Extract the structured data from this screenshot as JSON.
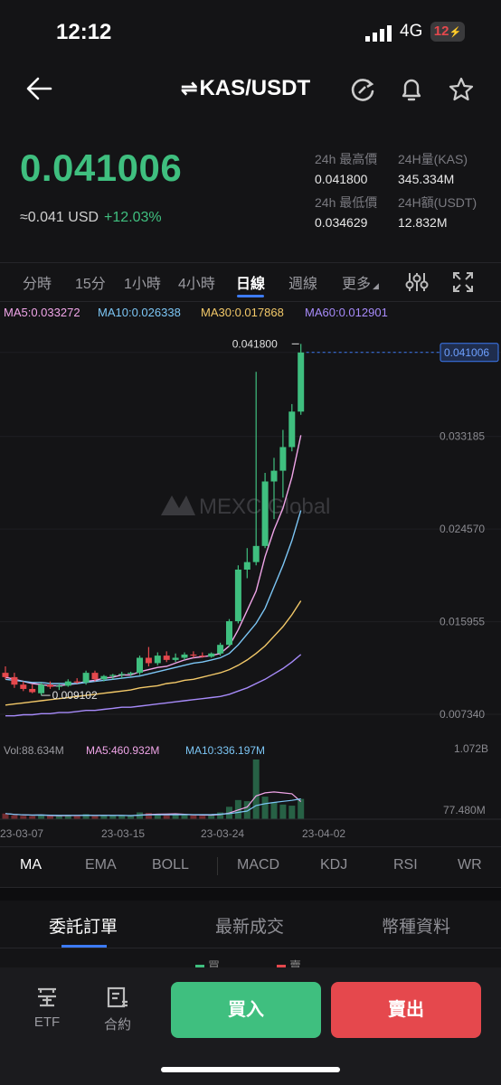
{
  "status": {
    "time": "12:12",
    "network": "4G",
    "battery": "12"
  },
  "header": {
    "pair": "KAS/USDT",
    "swap_symbol": "⇌"
  },
  "price": {
    "last": "0.041006",
    "usd": "≈0.041 USD",
    "change": "+12.03%"
  },
  "stats": {
    "high_label": "24h 最高價",
    "high_value": "0.041800",
    "vol_label": "24H量(KAS)",
    "vol_value": "345.334M",
    "low_label": "24h 最低價",
    "low_value": "0.034629",
    "amt_label": "24H額(USDT)",
    "amt_value": "12.832M"
  },
  "time_tabs": [
    "分時",
    "15分",
    "1小時",
    "4小時",
    "日線",
    "週線",
    "更多"
  ],
  "ma_legend": {
    "ma5": "MA5:0.033272",
    "ma10": "MA10:0.026338",
    "ma30": "MA30:0.017868",
    "ma60": "MA60:0.012901"
  },
  "volume_legend": {
    "vol": "Vol:88.634M",
    "ma5": "MA5:460.932M",
    "ma10": "MA10:336.197M"
  },
  "watermark": "MEXC Global",
  "colors": {
    "up": "#3fbf7f",
    "down": "#e5484d",
    "ma5": "#f0a5e8",
    "ma10": "#7cc6f5",
    "ma30": "#f3c969",
    "ma60": "#a78bfa",
    "accent": "#3d7bf5"
  },
  "chart_data": {
    "type": "candlestick",
    "price_axis_labels": [
      "0.041006",
      "0.033185",
      "0.024570",
      "0.015955",
      "0.007340"
    ],
    "volume_axis_labels": [
      "1.072B",
      "77.480M"
    ],
    "date_labels": [
      "23-03-07",
      "23-03-15",
      "23-03-24",
      "23-04-02"
    ],
    "high_marker": "0.041800",
    "low_marker": "0.009102",
    "ylim": [
      0.0065,
      0.0425
    ],
    "candles": [
      {
        "o": 0.0112,
        "h": 0.0118,
        "l": 0.0106,
        "c": 0.0108
      },
      {
        "o": 0.0108,
        "h": 0.0112,
        "l": 0.0098,
        "c": 0.0101
      },
      {
        "o": 0.0101,
        "h": 0.0104,
        "l": 0.0095,
        "c": 0.0097
      },
      {
        "o": 0.0097,
        "h": 0.0101,
        "l": 0.0093,
        "c": 0.0094
      },
      {
        "o": 0.0093,
        "h": 0.0103,
        "l": 0.0091,
        "c": 0.0101
      },
      {
        "o": 0.0101,
        "h": 0.0104,
        "l": 0.0097,
        "c": 0.0099
      },
      {
        "o": 0.0099,
        "h": 0.0102,
        "l": 0.0096,
        "c": 0.01
      },
      {
        "o": 0.01,
        "h": 0.0106,
        "l": 0.0099,
        "c": 0.0104
      },
      {
        "o": 0.0104,
        "h": 0.0107,
        "l": 0.0102,
        "c": 0.0103
      },
      {
        "o": 0.0103,
        "h": 0.0114,
        "l": 0.0101,
        "c": 0.0112
      },
      {
        "o": 0.0112,
        "h": 0.0114,
        "l": 0.0104,
        "c": 0.0106
      },
      {
        "o": 0.0106,
        "h": 0.011,
        "l": 0.0104,
        "c": 0.0109
      },
      {
        "o": 0.0109,
        "h": 0.0111,
        "l": 0.0106,
        "c": 0.011
      },
      {
        "o": 0.011,
        "h": 0.0113,
        "l": 0.0107,
        "c": 0.0111
      },
      {
        "o": 0.0111,
        "h": 0.0113,
        "l": 0.0109,
        "c": 0.0112
      },
      {
        "o": 0.0112,
        "h": 0.0128,
        "l": 0.011,
        "c": 0.0126
      },
      {
        "o": 0.0126,
        "h": 0.0136,
        "l": 0.0118,
        "c": 0.0121
      },
      {
        "o": 0.0121,
        "h": 0.0131,
        "l": 0.0119,
        "c": 0.0128
      },
      {
        "o": 0.0128,
        "h": 0.0132,
        "l": 0.0122,
        "c": 0.0124
      },
      {
        "o": 0.0124,
        "h": 0.013,
        "l": 0.0122,
        "c": 0.0126
      },
      {
        "o": 0.0126,
        "h": 0.0131,
        "l": 0.0124,
        "c": 0.0129
      },
      {
        "o": 0.0129,
        "h": 0.0132,
        "l": 0.0126,
        "c": 0.0128
      },
      {
        "o": 0.0128,
        "h": 0.0131,
        "l": 0.0126,
        "c": 0.0127
      },
      {
        "o": 0.0127,
        "h": 0.0131,
        "l": 0.0126,
        "c": 0.013
      },
      {
        "o": 0.013,
        "h": 0.014,
        "l": 0.0128,
        "c": 0.0138
      },
      {
        "o": 0.0138,
        "h": 0.0162,
        "l": 0.0136,
        "c": 0.016
      },
      {
        "o": 0.016,
        "h": 0.0212,
        "l": 0.0158,
        "c": 0.0208
      },
      {
        "o": 0.0208,
        "h": 0.0228,
        "l": 0.02,
        "c": 0.0215
      },
      {
        "o": 0.0215,
        "h": 0.0392,
        "l": 0.0212,
        "c": 0.023
      },
      {
        "o": 0.023,
        "h": 0.0298,
        "l": 0.0228,
        "c": 0.029
      },
      {
        "o": 0.029,
        "h": 0.0312,
        "l": 0.0255,
        "c": 0.03
      },
      {
        "o": 0.03,
        "h": 0.0338,
        "l": 0.0275,
        "c": 0.0322
      },
      {
        "o": 0.0322,
        "h": 0.0362,
        "l": 0.0318,
        "c": 0.0355
      },
      {
        "o": 0.0355,
        "h": 0.0418,
        "l": 0.0352,
        "c": 0.041
      }
    ],
    "volumes": [
      50,
      35,
      30,
      28,
      40,
      30,
      28,
      35,
      30,
      45,
      32,
      30,
      30,
      32,
      28,
      60,
      55,
      45,
      40,
      38,
      40,
      35,
      30,
      38,
      60,
      110,
      170,
      160,
      530,
      200,
      150,
      130,
      120,
      180
    ],
    "ma_lines": {
      "ma5": [
        0.0108,
        0.0106,
        0.0104,
        0.0102,
        0.0101,
        0.01,
        0.01,
        0.0101,
        0.0102,
        0.0104,
        0.0105,
        0.0107,
        0.0108,
        0.011,
        0.011,
        0.0113,
        0.0115,
        0.0117,
        0.0118,
        0.0121,
        0.0124,
        0.0126,
        0.0127,
        0.0128,
        0.013,
        0.0137,
        0.0152,
        0.017,
        0.0188,
        0.022,
        0.0245,
        0.0265,
        0.0294,
        0.0333
      ],
      "ma10": [
        0.0106,
        0.0105,
        0.0104,
        0.0103,
        0.0103,
        0.0102,
        0.0102,
        0.0102,
        0.0102,
        0.0103,
        0.0104,
        0.0105,
        0.0106,
        0.0107,
        0.0108,
        0.0109,
        0.0111,
        0.0113,
        0.0115,
        0.0117,
        0.0119,
        0.0121,
        0.0122,
        0.0124,
        0.0126,
        0.013,
        0.0138,
        0.0148,
        0.0158,
        0.0172,
        0.0192,
        0.0212,
        0.0235,
        0.0263
      ],
      "ma30": [
        0.0082,
        0.0083,
        0.0084,
        0.0085,
        0.0086,
        0.0087,
        0.0088,
        0.0089,
        0.009,
        0.0091,
        0.0092,
        0.0093,
        0.0094,
        0.0095,
        0.0096,
        0.0098,
        0.0099,
        0.01,
        0.0102,
        0.0103,
        0.0105,
        0.0106,
        0.0108,
        0.011,
        0.0112,
        0.0115,
        0.0119,
        0.0124,
        0.013,
        0.0137,
        0.0146,
        0.0155,
        0.0166,
        0.0179
      ],
      "ma60": [
        0.0072,
        0.0072,
        0.0073,
        0.0073,
        0.0074,
        0.0074,
        0.0075,
        0.0075,
        0.0076,
        0.0077,
        0.0077,
        0.0078,
        0.0079,
        0.008,
        0.008,
        0.0081,
        0.0082,
        0.0083,
        0.0084,
        0.0085,
        0.0086,
        0.0087,
        0.0088,
        0.0089,
        0.009,
        0.0092,
        0.0095,
        0.0098,
        0.0102,
        0.0106,
        0.0111,
        0.0116,
        0.0122,
        0.0129
      ]
    }
  },
  "indicator_tabs": [
    "MA",
    "EMA",
    "BOLL",
    "MACD",
    "KDJ",
    "RSI",
    "WR"
  ],
  "order_tabs": [
    "委託訂單",
    "最新成交",
    "幣種資料"
  ],
  "peek_labels": [
    "買",
    "賣"
  ],
  "bottom": {
    "etf_label": "ETF",
    "contract_label": "合約",
    "buy_label": "買入",
    "sell_label": "賣出"
  }
}
